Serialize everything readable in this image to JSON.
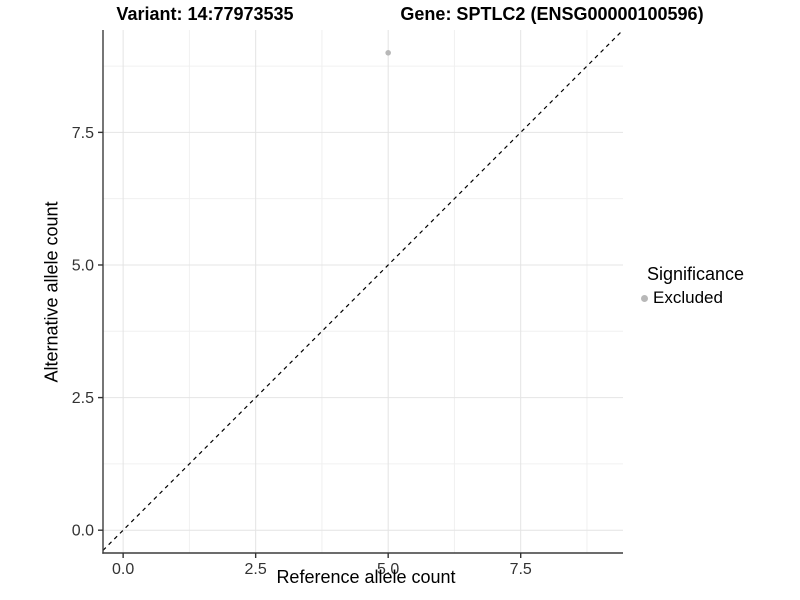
{
  "chart_data": {
    "type": "scatter",
    "title_left": "Variant: 14:77973535",
    "title_right": "Gene: SPTLC2 (ENSG00000100596)",
    "xlabel": "Reference allele count",
    "ylabel": "Alternative allele count",
    "x_ticks": [
      0.0,
      2.5,
      5.0,
      7.5
    ],
    "x_tick_labels": [
      "0.0",
      "2.5",
      "5.0",
      "7.5"
    ],
    "y_ticks": [
      0.0,
      2.5,
      5.0,
      7.5
    ],
    "y_tick_labels": [
      "0.0",
      "2.5",
      "5.0",
      "7.5"
    ],
    "x_minor_ticks": [
      1.25,
      3.75,
      6.25,
      8.75
    ],
    "y_minor_ticks": [
      1.25,
      3.75,
      6.25,
      8.75
    ],
    "xlim": [
      -0.38,
      9.43
    ],
    "ylim": [
      -0.43,
      9.43
    ],
    "grid": true,
    "points": [
      {
        "x": 5,
        "y": 9,
        "series": "Excluded"
      }
    ],
    "identity_line": {
      "equation": "y = x",
      "style": "dashed",
      "color": "#000000"
    },
    "legend": {
      "title": "Significance",
      "position": "right",
      "items": [
        {
          "label": "Excluded",
          "color": "#b8b8b8"
        }
      ]
    },
    "colors": {
      "point": "#b8b8b8",
      "grid_major": "#e4e4e4",
      "grid_minor": "#f0f0f0",
      "axis_line": "#3c3c3c",
      "tick_mark": "#333333"
    }
  }
}
